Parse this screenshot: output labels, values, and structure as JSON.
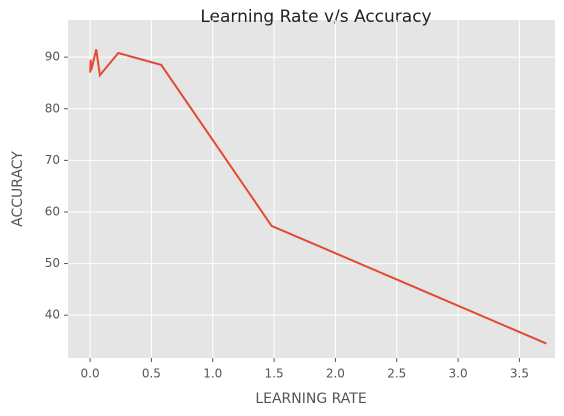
{
  "chart_data": {
    "type": "line",
    "title": "Learning Rate v/s Accuracy",
    "xlabel": "LEARNING RATE",
    "ylabel": "ACCURACY",
    "x": [
      0.001,
      0.005,
      0.01,
      0.05,
      0.08,
      0.23,
      0.58,
      1.48,
      3.72
    ],
    "series": [
      {
        "name": "accuracy",
        "color": "#E24A33",
        "values": [
          87,
          89.5,
          87.5,
          91.5,
          86.5,
          90.8,
          88.5,
          57.3,
          34.5
        ]
      }
    ],
    "xlim": [
      -0.18,
      3.79
    ],
    "ylim": [
      31.7,
      97.2
    ],
    "xticks": [
      {
        "value": 0,
        "label": "0.0"
      },
      0.5,
      {
        "value": 1,
        "label": "1.0"
      },
      1.5,
      {
        "value": 2,
        "label": "2.0"
      },
      2.5,
      {
        "value": 3,
        "label": "3.0"
      },
      3.5
    ],
    "yticks": [
      40,
      50,
      60,
      70,
      80,
      90
    ],
    "grid": true
  }
}
